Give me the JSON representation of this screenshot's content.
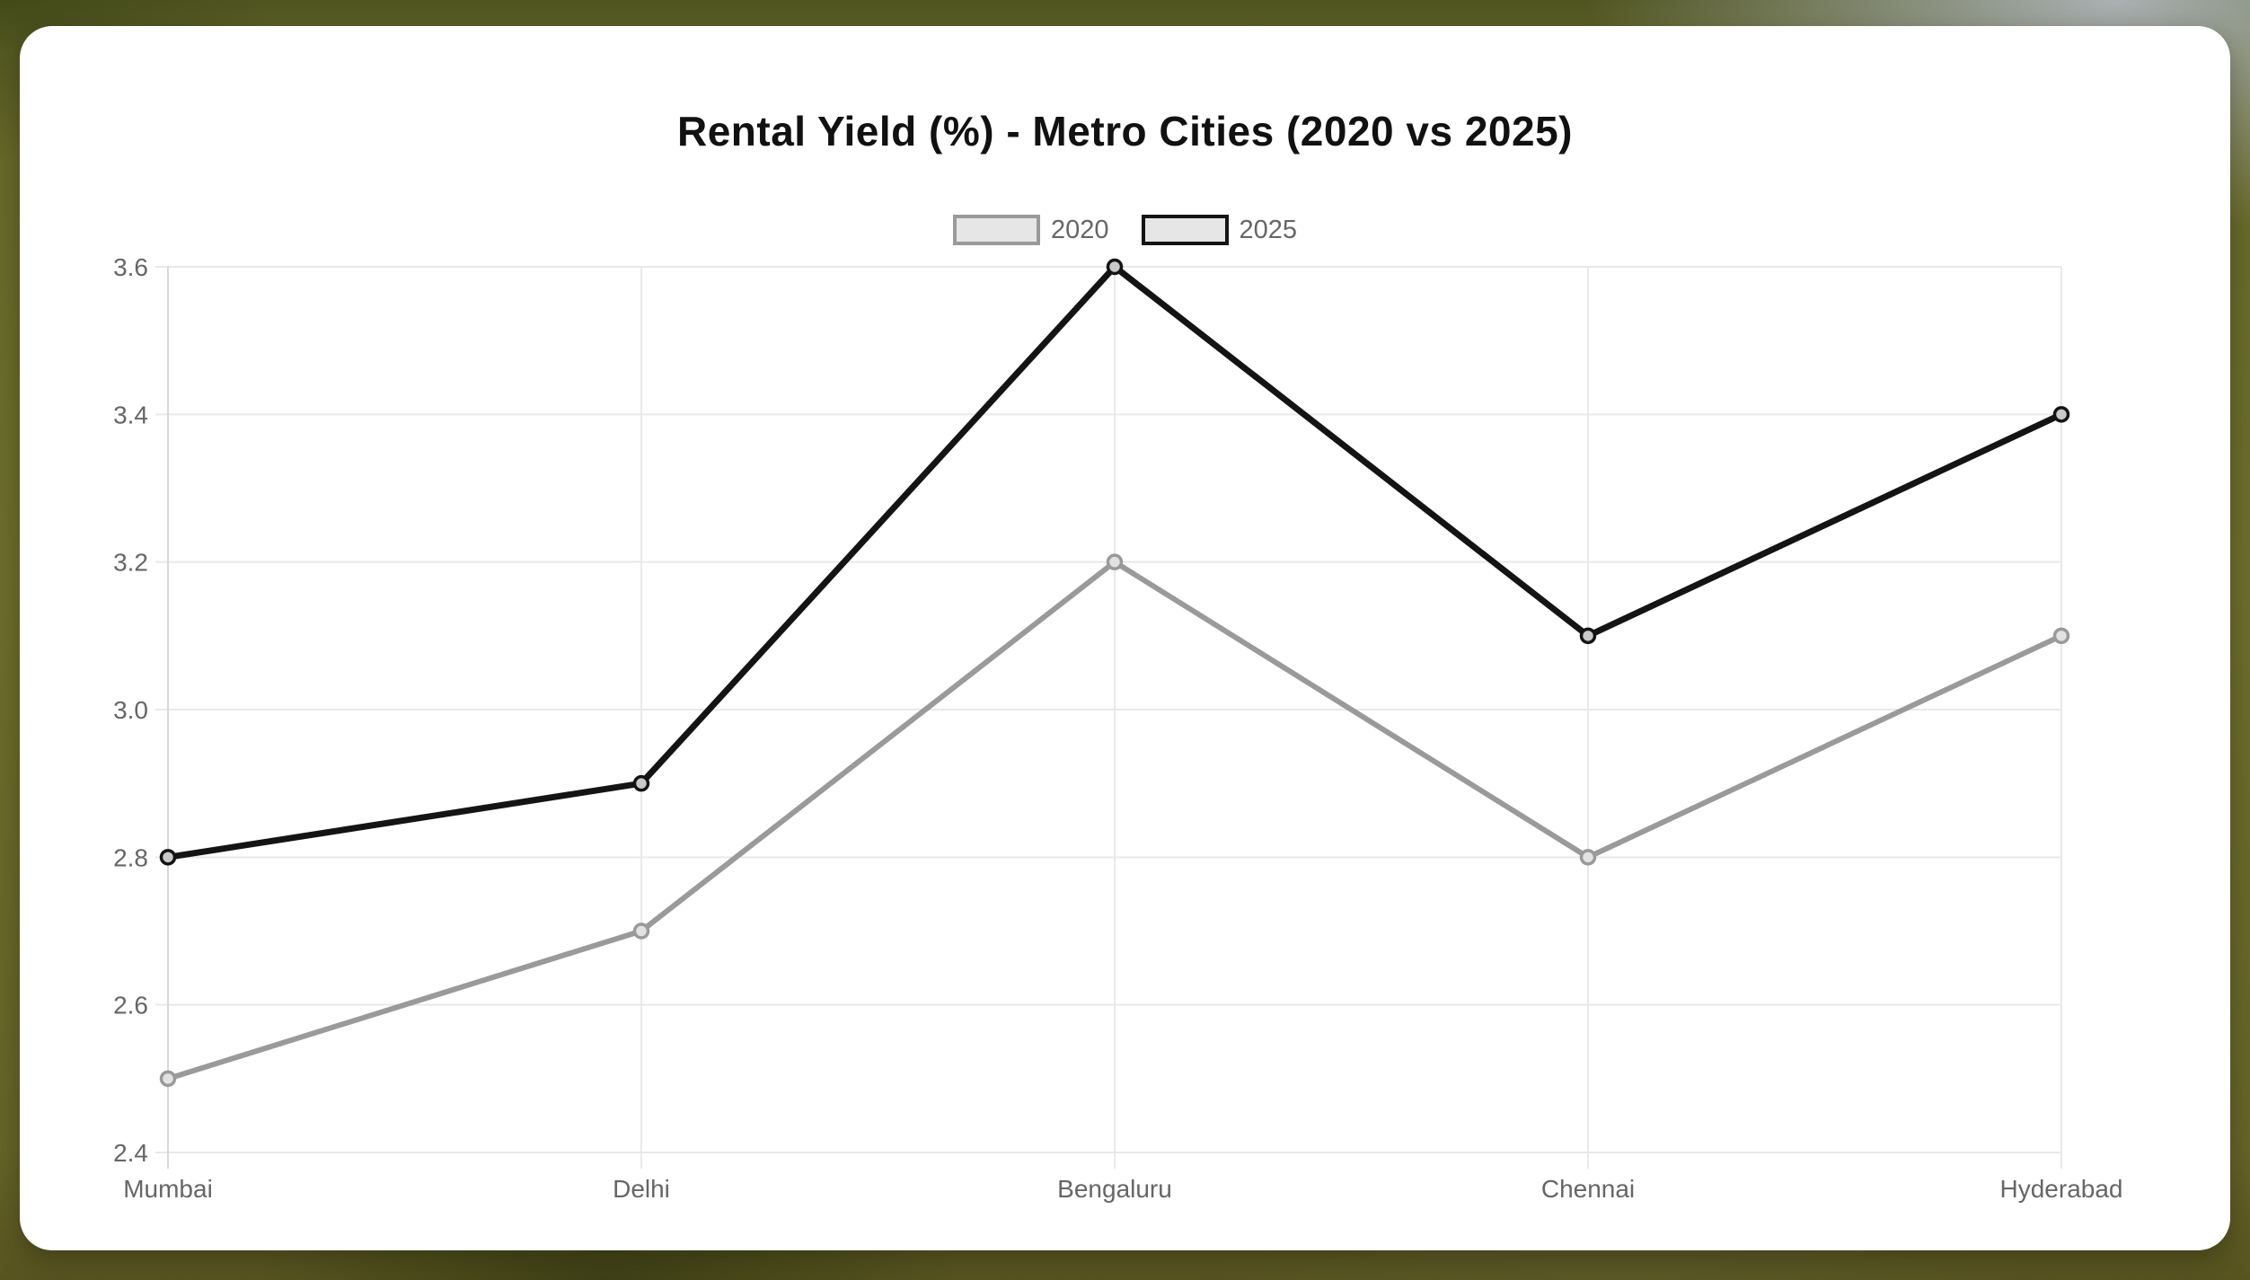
{
  "chart_data": {
    "type": "line",
    "title": "Rental Yield (%) - Metro Cities (2020 vs 2025)",
    "categories": [
      "Mumbai",
      "Delhi",
      "Bengaluru",
      "Chennai",
      "Hyderabad"
    ],
    "series": [
      {
        "name": "2020",
        "values": [
          2.5,
          2.7,
          3.2,
          2.8,
          3.1
        ],
        "line_color": "#9a9a9a",
        "point_fill": "#e2e2e2",
        "line_width": 6
      },
      {
        "name": "2025",
        "values": [
          2.8,
          2.9,
          3.6,
          3.1,
          3.4
        ],
        "line_color": "#141414",
        "point_fill": "#c9c9c9",
        "line_width": 7
      }
    ],
    "xlabel": "",
    "ylabel": "",
    "ylim": [
      2.4,
      3.6
    ],
    "y_tick_step": 0.2,
    "y_tick_labels": [
      "2.4",
      "2.6",
      "2.8",
      "3.0",
      "3.2",
      "3.4",
      "3.6"
    ],
    "grid": true,
    "legend_position": "top",
    "legend_swatch_fill": "#e6e6e6",
    "axis_text_color": "#666666",
    "grid_color": "#e9e9e9",
    "axis_line_color": "#d8d8d8",
    "title_color": "#111111",
    "tick_font_size": 28
  }
}
